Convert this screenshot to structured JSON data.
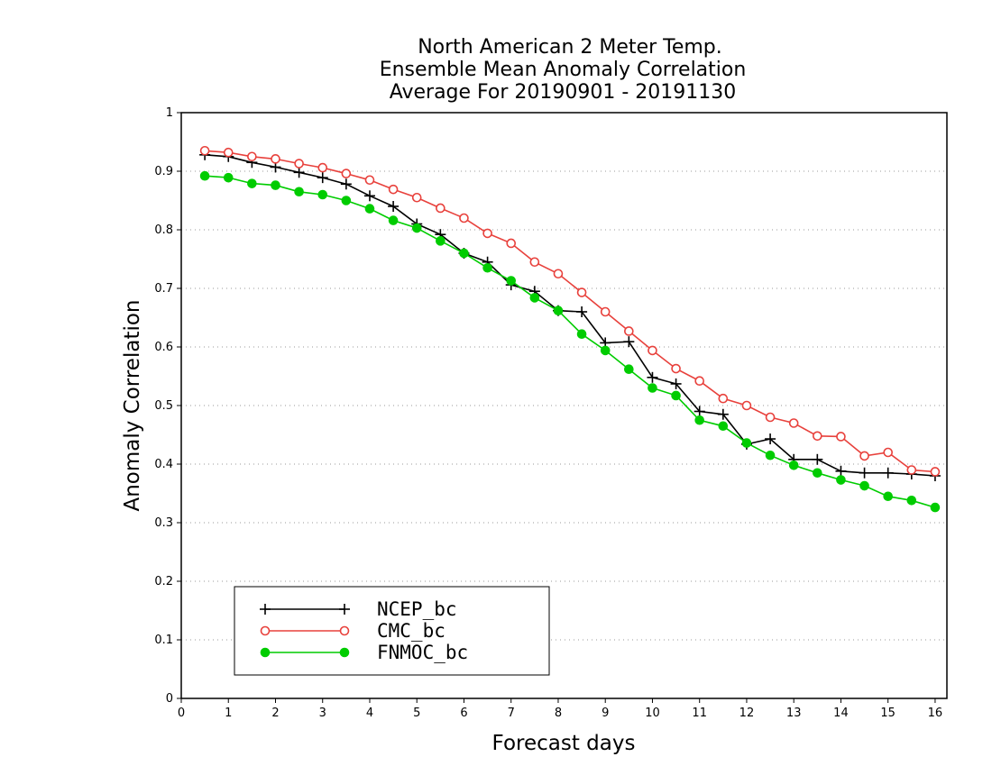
{
  "chart_data": {
    "type": "line",
    "title_lines": [
      "North American 2 Meter Temp.",
      "Ensemble Mean Anomaly Correlation",
      "Average For 20190901 - 20191130"
    ],
    "xlabel": "Forecast days",
    "ylabel": "Anomaly Correlation",
    "xlim": [
      0,
      16.25
    ],
    "ylim": [
      0,
      1
    ],
    "x_ticks": [
      0,
      1,
      2,
      3,
      4,
      5,
      6,
      7,
      8,
      9,
      10,
      11,
      12,
      13,
      14,
      15,
      16
    ],
    "y_ticks": [
      0,
      0.1,
      0.2,
      0.3,
      0.4,
      0.5,
      0.6,
      0.7,
      0.8,
      0.9,
      1
    ],
    "y_tick_labels": [
      "0",
      "0.1",
      "0.2",
      "0.3",
      "0.4",
      "0.5",
      "0.6",
      "0.7",
      "0.8",
      "0.9",
      "1"
    ],
    "grid": true,
    "legend_position": "bottom-left",
    "x": [
      0.5,
      1,
      1.5,
      2,
      2.5,
      3,
      3.5,
      4,
      4.5,
      5,
      5.5,
      6,
      6.5,
      7,
      7.5,
      8,
      8.5,
      9,
      9.5,
      10,
      10.5,
      11,
      11.5,
      12,
      12.5,
      13,
      13.5,
      14,
      14.5,
      15,
      15.5,
      16
    ],
    "series": [
      {
        "name": "NCEP_bc",
        "color": "#000000",
        "marker": "plus",
        "values": [
          0.928,
          0.925,
          0.915,
          0.907,
          0.898,
          0.889,
          0.878,
          0.858,
          0.84,
          0.81,
          0.792,
          0.76,
          0.745,
          0.706,
          0.695,
          0.662,
          0.66,
          0.607,
          0.609,
          0.548,
          0.537,
          0.49,
          0.485,
          0.434,
          0.443,
          0.408,
          0.408,
          0.388,
          0.385,
          0.385,
          0.383,
          0.38
        ]
      },
      {
        "name": "CMC_bc",
        "color": "#e8413c",
        "marker": "open-circle",
        "values": [
          0.935,
          0.932,
          0.925,
          0.921,
          0.913,
          0.906,
          0.896,
          0.885,
          0.869,
          0.855,
          0.837,
          0.82,
          0.794,
          0.777,
          0.745,
          0.725,
          0.693,
          0.66,
          0.627,
          0.594,
          0.563,
          0.542,
          0.512,
          0.5,
          0.48,
          0.47,
          0.448,
          0.447,
          0.414,
          0.42,
          0.39,
          0.387
        ]
      },
      {
        "name": "FNMOC_bc",
        "color": "#00cc00",
        "marker": "filled-circle",
        "values": [
          0.892,
          0.889,
          0.879,
          0.876,
          0.865,
          0.86,
          0.85,
          0.836,
          0.816,
          0.803,
          0.781,
          0.76,
          0.735,
          0.713,
          0.684,
          0.662,
          0.622,
          0.594,
          0.562,
          0.53,
          0.517,
          0.475,
          0.465,
          0.436,
          0.415,
          0.398,
          0.385,
          0.373,
          0.363,
          0.345,
          0.338,
          0.326
        ]
      }
    ]
  }
}
